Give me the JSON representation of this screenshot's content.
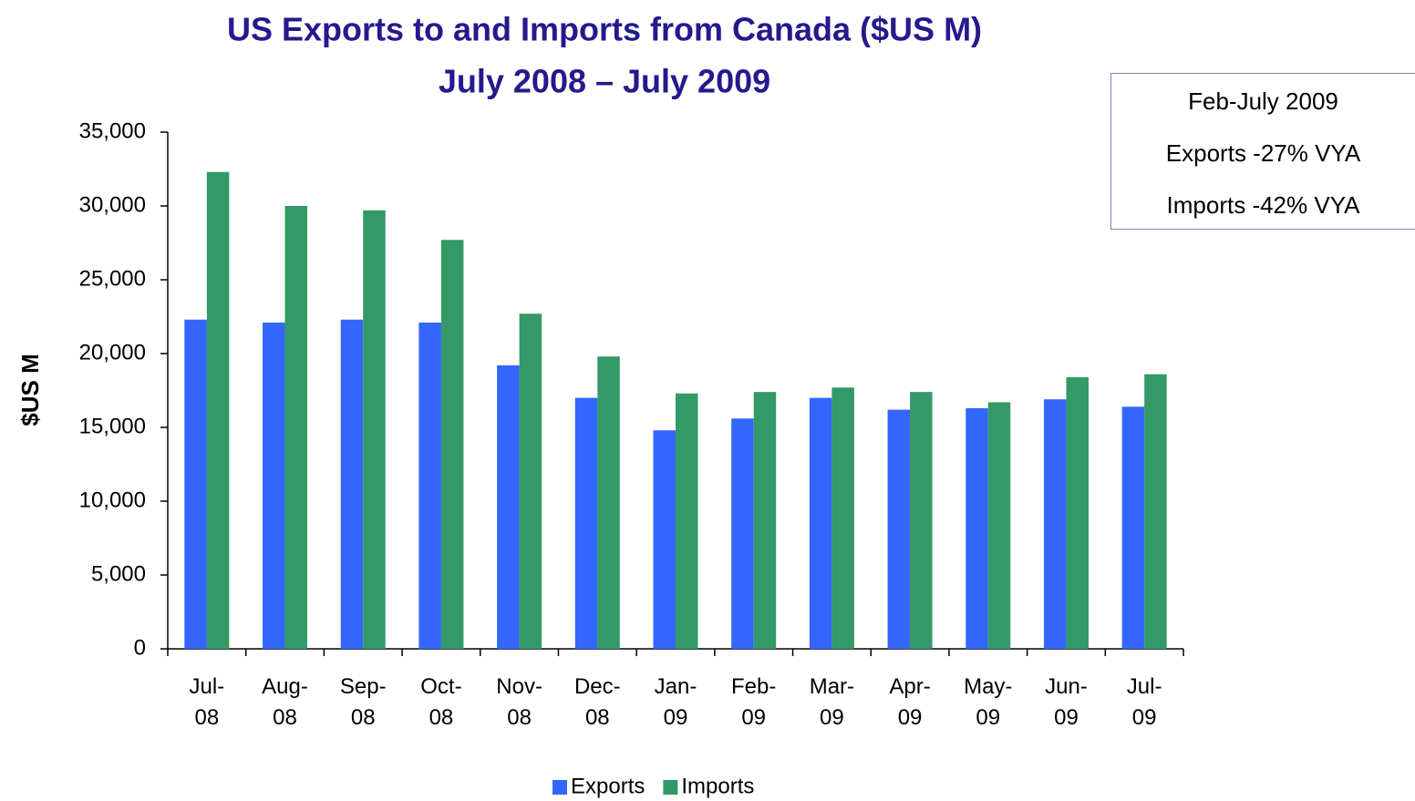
{
  "chart_data": {
    "type": "bar",
    "title": "US Exports to and Imports from Canada ($US M)",
    "subtitle": "July 2008 – July 2009",
    "y_label": "$US M",
    "annotation": [
      "Feb-July 2009",
      "Exports -27% VYA",
      "Imports -42% VYA"
    ],
    "categories": [
      "Jul-08",
      "Aug-08",
      "Sep-08",
      "Oct-08",
      "Nov-08",
      "Dec-08",
      "Jan-09",
      "Feb-09",
      "Mar-09",
      "Apr-09",
      "May-09",
      "Jun-09",
      "Jul-09"
    ],
    "series": [
      {
        "name": "Exports",
        "color": "#3366ff",
        "values": [
          22300,
          22100,
          22300,
          22100,
          19200,
          17000,
          14800,
          15600,
          17000,
          16200,
          16300,
          16900,
          16400
        ]
      },
      {
        "name": "Imports",
        "color": "#339966",
        "values": [
          32300,
          30000,
          29700,
          27700,
          22700,
          19800,
          17300,
          17400,
          17700,
          17400,
          16700,
          18400,
          18600
        ]
      }
    ],
    "ylim": [
      0,
      35000
    ],
    "yticks": [
      0,
      {
        "value": 5000,
        "label": "5,000"
      },
      {
        "value": 10000,
        "label": "10,000"
      },
      {
        "value": 15000,
        "label": "15,000"
      },
      {
        "value": 20000,
        "label": "20,000"
      },
      {
        "value": 25000,
        "label": "25,000"
      },
      {
        "value": 30000,
        "label": "30,000"
      },
      {
        "value": 35000,
        "label": "35,000"
      }
    ],
    "legend": "bottom"
  }
}
